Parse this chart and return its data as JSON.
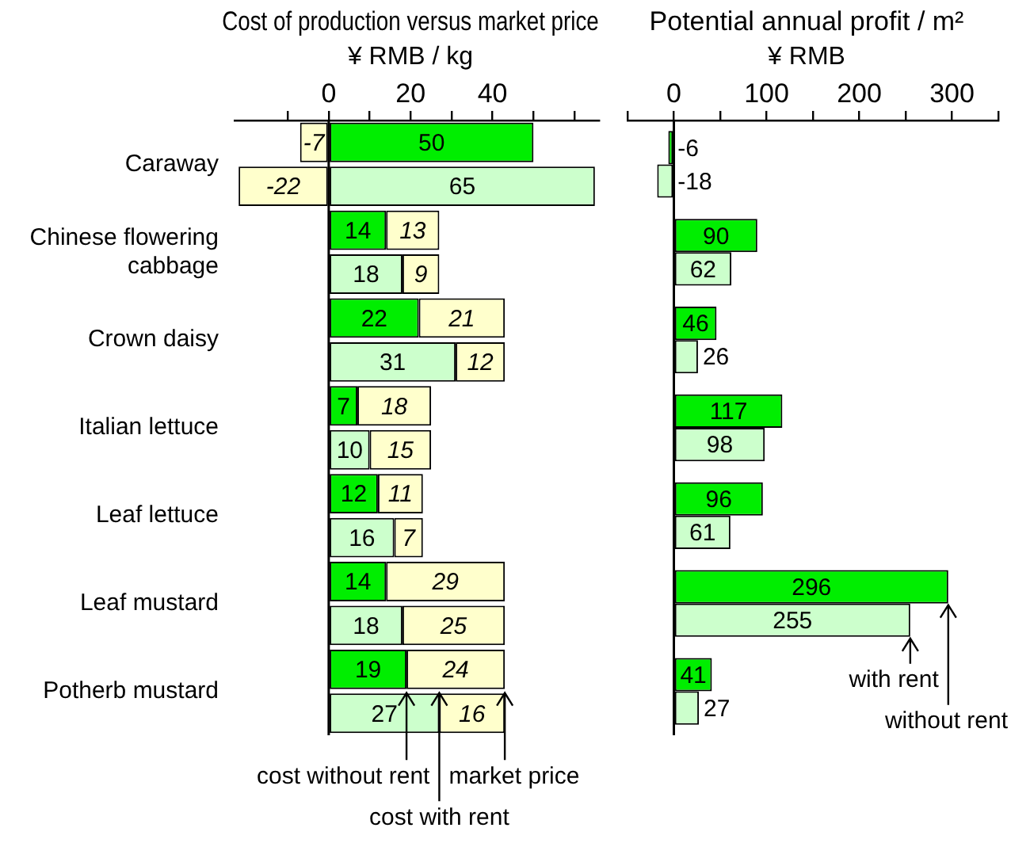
{
  "chart_data": [
    {
      "type": "bar",
      "orientation": "horizontal",
      "stacked": true,
      "title": "Cost of production versus market price",
      "subtitle": "¥ RMB / kg",
      "categories": [
        "Caraway",
        null,
        "Chinese flowering cabbage",
        null,
        "Crown daisy",
        null,
        "Italian lettuce",
        null,
        "Leaf lettuce",
        null,
        "Leaf mustard",
        null,
        "Potherb mustard",
        null
      ],
      "series": [
        {
          "colors": [
            "#00ee00",
            "#ccffcc",
            "#00ee00",
            "#ccffcc",
            "#00ee00",
            "#ccffcc",
            "#00ee00",
            "#ccffcc",
            "#00ee00",
            "#ccffcc",
            "#00ee00",
            "#ccffcc",
            "#00ee00",
            "#ccffcc"
          ],
          "values": [
            50,
            65,
            14,
            18,
            22,
            31,
            7,
            10,
            12,
            16,
            14,
            18,
            19,
            27
          ]
        },
        {
          "color": "#ffffcc",
          "values": [
            -7,
            -22,
            13,
            9,
            21,
            12,
            18,
            15,
            11,
            7,
            29,
            25,
            24,
            16
          ]
        }
      ],
      "xlim": [
        -23,
        66
      ],
      "xticks": [
        {
          "value": -10,
          "label": null
        },
        0,
        {
          "value": 10,
          "label": null
        },
        20,
        {
          "value": 30,
          "label": null
        },
        40,
        {
          "value": 50,
          "label": null
        },
        {
          "value": 60,
          "label": null
        }
      ],
      "grid": false,
      "data_labels": true,
      "ref_lines": [
        {
          "axis": "x",
          "value": 0
        }
      ],
      "annotations": [
        {
          "text": "cost without rent",
          "x": 19,
          "y": "Potherb mustard"
        },
        {
          "text": "cost with rent",
          "x": 27,
          "y": "Potherb mustard"
        },
        {
          "text": "market price",
          "x": 43,
          "y": "Potherb mustard"
        }
      ]
    },
    {
      "type": "bar",
      "orientation": "horizontal",
      "title": "Potential annual profit / m²",
      "subtitle": "¥ RMB",
      "categories": [
        "Caraway",
        "Chinese flowering cabbage",
        "Crown daisy",
        "Italian lettuce",
        "Leaf lettuce",
        "Leaf mustard",
        "Potherb mustard"
      ],
      "tick_labels": "x",
      "series": [
        {
          "color": "#00ee00",
          "values": [
            -6,
            90,
            46,
            117,
            96,
            296,
            41
          ]
        },
        {
          "color": "#ccffcc",
          "values": [
            -18,
            62,
            26,
            98,
            61,
            255,
            27
          ]
        }
      ],
      "xlim": [
        -50,
        350
      ],
      "xticks": [
        {
          "value": -50,
          "label": null
        },
        0,
        {
          "value": 50,
          "label": null
        },
        100,
        {
          "value": 150,
          "label": null
        },
        200,
        {
          "value": 250,
          "label": null
        },
        300,
        {
          "value": 350,
          "label": null
        }
      ],
      "grid": false,
      "data_labels": true,
      "ref_lines": [
        {
          "axis": "x",
          "value": 0
        }
      ],
      "annotations": [
        {
          "text": "with rent",
          "x": 255,
          "y": "Leaf mustard"
        },
        {
          "text": "without rent",
          "x": 296,
          "y": "Leaf mustard"
        }
      ]
    }
  ]
}
